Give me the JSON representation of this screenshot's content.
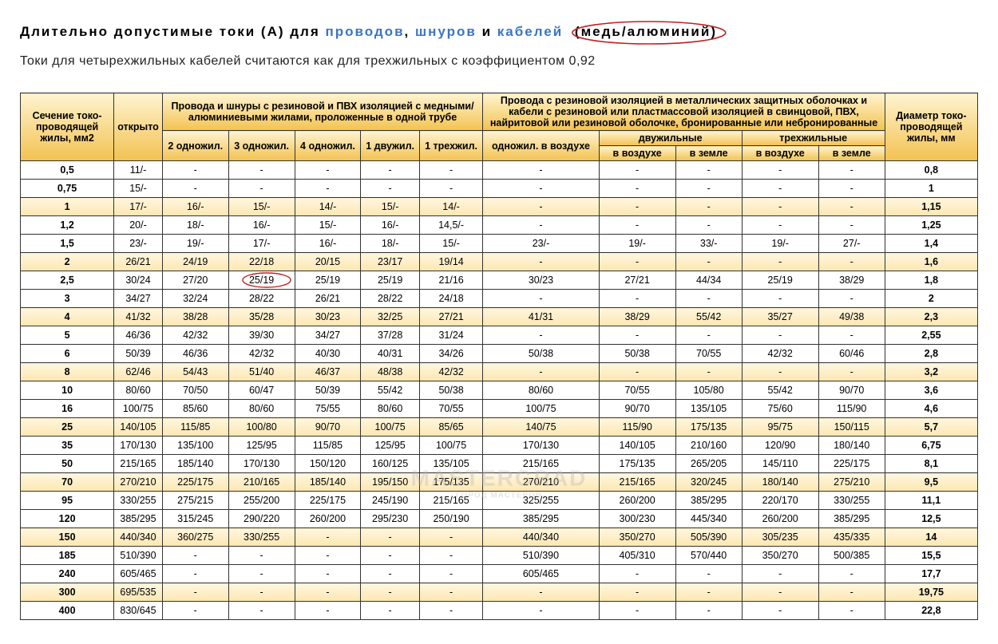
{
  "title": {
    "t1": "Длительно допустимые токи (А) для ",
    "link1": "проводов",
    "sep1": ", ",
    "link2": "шнуров",
    "sep2": " и ",
    "link3": "кабелей",
    "annot": " (медь/алюминий)"
  },
  "subtitle": "Токи для четырехжильных кабелей считаются как для трехжильных с коэффициентом 0,92",
  "headers": {
    "section": "Сечение токо-проводящей жилы, мм2",
    "open": "открыто",
    "groupA": "Провода и шнуры с резиновой и ПВХ изоляцией с медными/алюминиевыми жилами, проложенные в одной трубе",
    "groupB": "Провода с резиновой изоляцией в металлических защитных оболочках и кабели с резиновой или пластмассовой изоляцией в свинцовой, ПВХ, найритовой или резиновой оболочке, бронированные или небронированные",
    "diam": "Диаметр токо-проводящей жилы, мм",
    "a1": "2 одножил.",
    "a2": "3 одножил.",
    "a3": "4 одножил.",
    "a4": "1 двужил.",
    "a5": "1 трехжил.",
    "b1": "одножил. в воздухе",
    "b2": "двужильные",
    "b3": "трехжильные",
    "sub_air": "в воздухе",
    "sub_ground": "в земле"
  },
  "rows": [
    {
      "s": "0,5",
      "cells": [
        "11/-",
        "-",
        "-",
        "-",
        "-",
        "-",
        "-",
        "-",
        "-",
        "-",
        "-"
      ],
      "d": "0,8"
    },
    {
      "s": "0,75",
      "cells": [
        "15/-",
        "-",
        "-",
        "-",
        "-",
        "-",
        "-",
        "-",
        "-",
        "-",
        "-"
      ],
      "d": "1"
    },
    {
      "s": "1",
      "cells": [
        "17/-",
        "16/-",
        "15/-",
        "14/-",
        "15/-",
        "14/-",
        "-",
        "-",
        "-",
        "-",
        "-"
      ],
      "d": "1,15"
    },
    {
      "s": "1,2",
      "cells": [
        "20/-",
        "18/-",
        "16/-",
        "15/-",
        "16/-",
        "14,5/-",
        "-",
        "-",
        "-",
        "-",
        "-"
      ],
      "d": "1,25"
    },
    {
      "s": "1,5",
      "cells": [
        "23/-",
        "19/-",
        "17/-",
        "16/-",
        "18/-",
        "15/-",
        "23/-",
        "19/-",
        "33/-",
        "19/-",
        "27/-"
      ],
      "d": "1,4"
    },
    {
      "s": "2",
      "cells": [
        "26/21",
        "24/19",
        "22/18",
        "20/15",
        "23/17",
        "19/14",
        "-",
        "-",
        "-",
        "-",
        "-"
      ],
      "d": "1,6"
    },
    {
      "s": "2,5",
      "cells": [
        "30/24",
        "27/20",
        "25/19",
        "25/19",
        "25/19",
        "21/16",
        "30/23",
        "27/21",
        "44/34",
        "25/19",
        "38/29"
      ],
      "d": "1,8",
      "circle": 2
    },
    {
      "s": "3",
      "cells": [
        "34/27",
        "32/24",
        "28/22",
        "26/21",
        "28/22",
        "24/18",
        "-",
        "-",
        "-",
        "-",
        "-"
      ],
      "d": "2"
    },
    {
      "s": "4",
      "cells": [
        "41/32",
        "38/28",
        "35/28",
        "30/23",
        "32/25",
        "27/21",
        "41/31",
        "38/29",
        "55/42",
        "35/27",
        "49/38"
      ],
      "d": "2,3"
    },
    {
      "s": "5",
      "cells": [
        "46/36",
        "42/32",
        "39/30",
        "34/27",
        "37/28",
        "31/24",
        "-",
        "-",
        "-",
        "-",
        "-"
      ],
      "d": "2,55"
    },
    {
      "s": "6",
      "cells": [
        "50/39",
        "46/36",
        "42/32",
        "40/30",
        "40/31",
        "34/26",
        "50/38",
        "50/38",
        "70/55",
        "42/32",
        "60/46"
      ],
      "d": "2,8"
    },
    {
      "s": "8",
      "cells": [
        "62/46",
        "54/43",
        "51/40",
        "46/37",
        "48/38",
        "42/32",
        "-",
        "-",
        "-",
        "-",
        "-"
      ],
      "d": "3,2"
    },
    {
      "s": "10",
      "cells": [
        "80/60",
        "70/50",
        "60/47",
        "50/39",
        "55/42",
        "50/38",
        "80/60",
        "70/55",
        "105/80",
        "55/42",
        "90/70"
      ],
      "d": "3,6"
    },
    {
      "s": "16",
      "cells": [
        "100/75",
        "85/60",
        "80/60",
        "75/55",
        "80/60",
        "70/55",
        "100/75",
        "90/70",
        "135/105",
        "75/60",
        "115/90"
      ],
      "d": "4,6"
    },
    {
      "s": "25",
      "cells": [
        "140/105",
        "115/85",
        "100/80",
        "90/70",
        "100/75",
        "85/65",
        "140/75",
        "115/90",
        "175/135",
        "95/75",
        "150/115"
      ],
      "d": "5,7"
    },
    {
      "s": "35",
      "cells": [
        "170/130",
        "135/100",
        "125/95",
        "115/85",
        "125/95",
        "100/75",
        "170/130",
        "140/105",
        "210/160",
        "120/90",
        "180/140"
      ],
      "d": "6,75"
    },
    {
      "s": "50",
      "cells": [
        "215/165",
        "185/140",
        "170/130",
        "150/120",
        "160/125",
        "135/105",
        "215/165",
        "175/135",
        "265/205",
        "145/110",
        "225/175"
      ],
      "d": "8,1"
    },
    {
      "s": "70",
      "cells": [
        "270/210",
        "225/175",
        "210/165",
        "185/140",
        "195/150",
        "175/135",
        "270/210",
        "215/165",
        "320/245",
        "180/140",
        "275/210"
      ],
      "d": "9,5"
    },
    {
      "s": "95",
      "cells": [
        "330/255",
        "275/215",
        "255/200",
        "225/175",
        "245/190",
        "215/165",
        "325/255",
        "260/200",
        "385/295",
        "220/170",
        "330/255"
      ],
      "d": "11,1"
    },
    {
      "s": "120",
      "cells": [
        "385/295",
        "315/245",
        "290/220",
        "260/200",
        "295/230",
        "250/190",
        "385/295",
        "300/230",
        "445/340",
        "260/200",
        "385/295"
      ],
      "d": "12,5"
    },
    {
      "s": "150",
      "cells": [
        "440/340",
        "360/275",
        "330/255",
        "-",
        "-",
        "-",
        "440/340",
        "350/270",
        "505/390",
        "305/235",
        "435/335"
      ],
      "d": "14"
    },
    {
      "s": "185",
      "cells": [
        "510/390",
        "-",
        "-",
        "-",
        "-",
        "-",
        "510/390",
        "405/310",
        "570/440",
        "350/270",
        "500/385"
      ],
      "d": "15,5"
    },
    {
      "s": "240",
      "cells": [
        "605/465",
        "-",
        "-",
        "-",
        "-",
        "-",
        "605/465",
        "-",
        "-",
        "-",
        "-"
      ],
      "d": "17,7"
    },
    {
      "s": "300",
      "cells": [
        "695/535",
        "-",
        "-",
        "-",
        "-",
        "-",
        "-",
        "-",
        "-",
        "-",
        "-"
      ],
      "d": "19,75"
    },
    {
      "s": "400",
      "cells": [
        "830/645",
        "-",
        "-",
        "-",
        "-",
        "-",
        "-",
        "-",
        "-",
        "-",
        "-"
      ],
      "d": "22,8"
    }
  ],
  "bands": [
    2,
    5,
    8,
    11,
    14,
    17,
    20,
    23
  ],
  "watermark": {
    "main": "MASTERGRAD",
    "sub": "ГОРОД МАСТЕРОВ"
  },
  "style": {
    "annot_color": "#c02020",
    "link_color": "#3b74c4",
    "header_bg_gradient": [
      "#fff3d0",
      "#f8d889",
      "#f3c251"
    ],
    "band_bg_gradient": [
      "#fff6e0",
      "#fde7b0"
    ],
    "border_color": "#333333",
    "font_family": "Verdana, Arial, sans-serif"
  }
}
